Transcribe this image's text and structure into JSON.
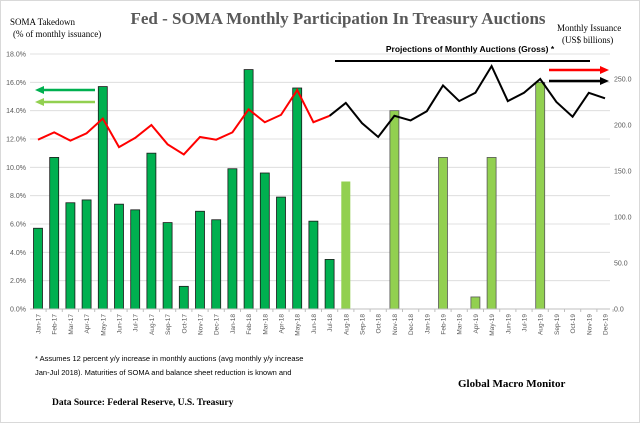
{
  "chart_data": {
    "type": "bar",
    "title": "Fed - SOMA Monthly Participation In Treasury Auctions",
    "left_axis_label": [
      "SOMA Takedown",
      "(% of monthly issuance)"
    ],
    "right_axis_label": [
      "Monthly  Issuance",
      "(US$ billions)"
    ],
    "projection_label": "Projections  of Monthly Auctions (Gross) *",
    "categories": [
      "Jan-17",
      "Feb-17",
      "Mar-17",
      "Apr-17",
      "May-17",
      "Jun-17",
      "Jul-17",
      "Aug-17",
      "Sep-17",
      "Oct-17",
      "Nov-17",
      "Dec-17",
      "Jan-18",
      "Feb-18",
      "Mar-18",
      "Apr-18",
      "May-18",
      "Jun-18",
      "Jul-18",
      "Aug-18",
      "Sep-18",
      "Oct-18",
      "Nov-18",
      "Dec-18",
      "Jan-19",
      "Feb-19",
      "Mar-19",
      "Apr-19",
      "May-19",
      "Jun-19",
      "Jul-19",
      "Aug-19",
      "Sep-19",
      "Oct-19",
      "Nov-19",
      "Dec-19"
    ],
    "left_ylim": [
      0,
      18
    ],
    "left_ticks": [
      "0.0%",
      "2.0%",
      "4.0%",
      "6.0%",
      "8.0%",
      "10.0%",
      "12.0%",
      "14.0%",
      "16.0%",
      "18.0%"
    ],
    "right_ylim": [
      0,
      300
    ],
    "right_ticks": [
      "0.0",
      "50.0",
      "100.0",
      "150.0",
      "200.0",
      "250.0"
    ],
    "grid": true,
    "series": [
      {
        "kind": "bar",
        "axis": "left",
        "color": "#00B050",
        "values": [
          5.7,
          10.7,
          7.5,
          7.7,
          15.7,
          7.4,
          7.0,
          11.0,
          6.1,
          1.6,
          6.9,
          6.3,
          9.9,
          16.9,
          9.6,
          7.9,
          15.6,
          6.2,
          3.5,
          null,
          null,
          null,
          null,
          null,
          null,
          null,
          null,
          null,
          null,
          null,
          null,
          null,
          null,
          null,
          null,
          null
        ]
      },
      {
        "kind": "bar",
        "axis": "left",
        "color": "#92D050",
        "values": [
          null,
          null,
          null,
          null,
          null,
          null,
          null,
          null,
          null,
          null,
          null,
          null,
          null,
          null,
          null,
          null,
          null,
          null,
          null,
          9.0,
          null,
          null,
          14.0,
          null,
          null,
          10.7,
          null,
          0.85,
          10.7,
          null,
          null,
          16.0,
          null,
          null,
          null,
          null
        ]
      },
      {
        "kind": "line",
        "axis": "right",
        "color": "#FF0000",
        "values": [
          184,
          192,
          183,
          191,
          207,
          176,
          186,
          200,
          179,
          168,
          187,
          184,
          192,
          217,
          203,
          211,
          238,
          203,
          210,
          null,
          null,
          null,
          null,
          null,
          null,
          null,
          null,
          null,
          null,
          null,
          null,
          null,
          null,
          null,
          null,
          null
        ]
      },
      {
        "kind": "line",
        "axis": "right",
        "color": "#000000",
        "values": [
          null,
          null,
          null,
          null,
          null,
          null,
          null,
          null,
          null,
          null,
          null,
          null,
          null,
          null,
          null,
          null,
          null,
          null,
          210,
          224,
          202,
          187,
          210,
          205,
          215,
          243,
          226,
          235,
          264,
          226,
          235,
          250,
          225,
          209,
          235,
          229
        ]
      }
    ]
  },
  "footnote": [
    "* Assumes 12 percent y/y increase in monthly auctions (avg monthly y/y increase",
    "Jan-Jul 2018).  Maturities of SOMA and balance sheet reduction is known and"
  ],
  "source": "Data Source:  Federal  Reserve,  U.S. Treasury",
  "brand": "Global Macro Monitor"
}
